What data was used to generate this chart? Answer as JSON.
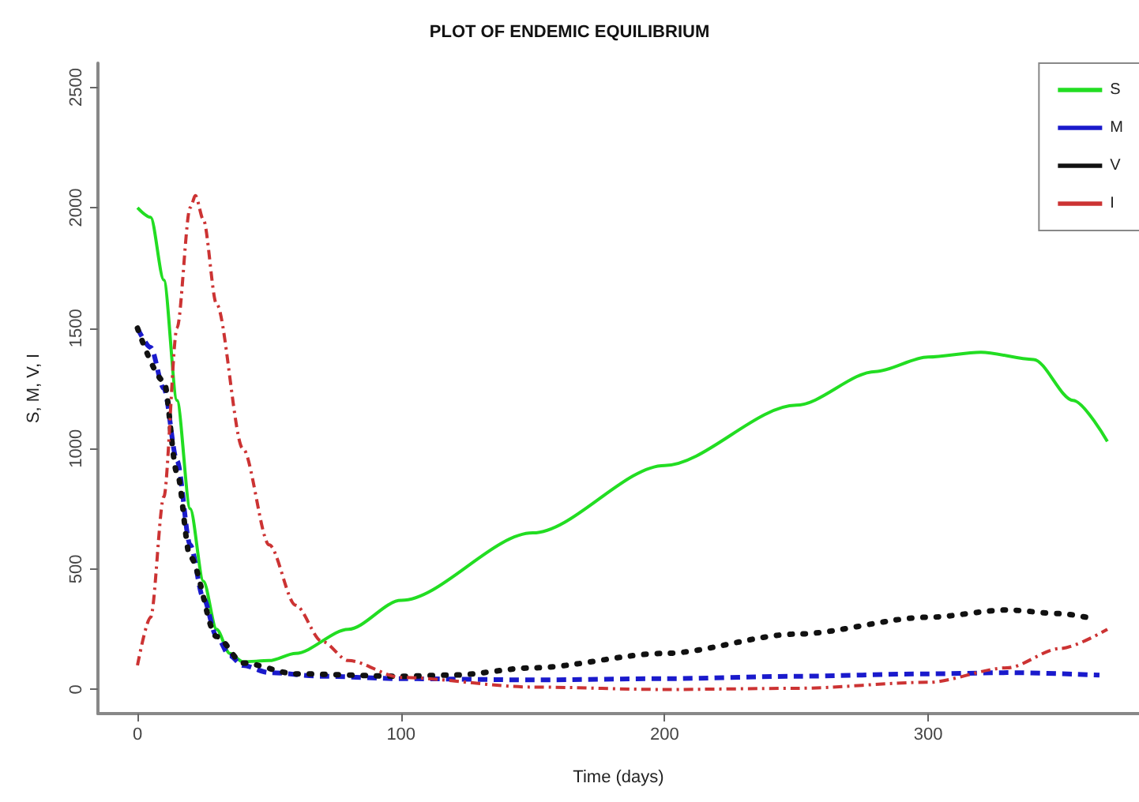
{
  "chart_data": {
    "type": "line",
    "title": "PLOT OF ENDEMIC EQUILIBRIUM",
    "xlabel": "Time (days)",
    "ylabel": "S, M, V, I",
    "xlim": [
      -15,
      380
    ],
    "xticks": [
      0,
      100,
      200,
      300
    ],
    "ylim": [
      -100,
      2600
    ],
    "yticks": [
      0,
      500,
      1000,
      1500,
      2000,
      2500
    ],
    "grid": false,
    "legend": "top right",
    "marker": "none",
    "series": [
      {
        "name": "S",
        "color": "#22dd22",
        "line_style": "solid",
        "x": [
          0,
          5,
          10,
          15,
          20,
          25,
          30,
          35,
          40,
          50,
          60,
          80,
          100,
          150,
          200,
          250,
          280,
          300,
          320,
          340,
          355,
          368
        ],
        "values": [
          2000,
          1960,
          1700,
          1200,
          750,
          450,
          250,
          150,
          115,
          120,
          150,
          250,
          370,
          650,
          930,
          1180,
          1320,
          1380,
          1400,
          1370,
          1200,
          1030
        ]
      },
      {
        "name": "M",
        "color": "#1a1acc",
        "line_style": "dashed",
        "x": [
          0,
          5,
          10,
          15,
          20,
          25,
          30,
          35,
          40,
          50,
          70,
          100,
          150,
          200,
          250,
          300,
          330,
          365
        ],
        "values": [
          1500,
          1420,
          1250,
          950,
          600,
          380,
          220,
          140,
          100,
          70,
          55,
          45,
          40,
          45,
          55,
          65,
          70,
          60
        ]
      },
      {
        "name": "V",
        "color": "#111111",
        "line_style": "dotted",
        "x": [
          0,
          10,
          15,
          20,
          30,
          40,
          60,
          100,
          120,
          150,
          200,
          250,
          300,
          330,
          350,
          360
        ],
        "values": [
          1500,
          1280,
          900,
          550,
          220,
          110,
          65,
          55,
          60,
          90,
          150,
          230,
          300,
          330,
          315,
          300
        ]
      },
      {
        "name": "I",
        "color": "#cc3333",
        "line_style": "dashdot",
        "x": [
          0,
          5,
          10,
          15,
          20,
          22,
          25,
          30,
          40,
          50,
          60,
          70,
          80,
          100,
          150,
          200,
          250,
          300,
          330,
          350,
          368
        ],
        "values": [
          100,
          300,
          800,
          1500,
          2000,
          2050,
          1950,
          1600,
          1000,
          600,
          350,
          200,
          120,
          50,
          10,
          0,
          5,
          30,
          90,
          170,
          250
        ]
      }
    ]
  }
}
